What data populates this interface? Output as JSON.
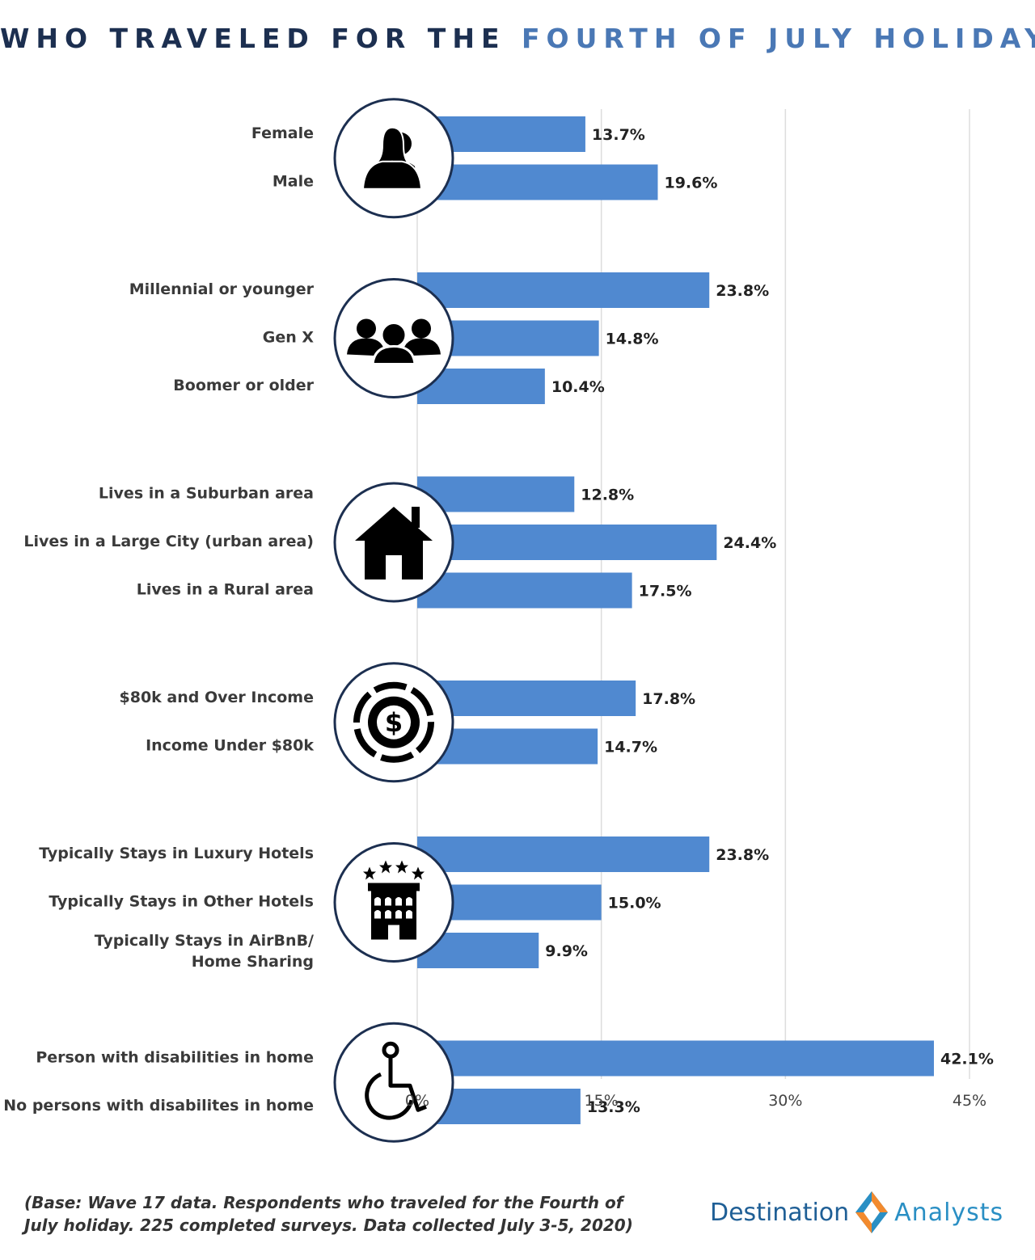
{
  "title": {
    "part1": "WHO TRAVELED FOR THE",
    "part2": "FOURTH OF JULY HOLIDAY"
  },
  "colors": {
    "bar": "#5089d0",
    "title_dark": "#1c2f50",
    "title_accent": "#4a78b5",
    "circle_border": "#1c2f50",
    "grid": "#dddddd"
  },
  "chart_data": {
    "type": "bar",
    "orientation": "horizontal",
    "title": "WHO TRAVELED FOR THE FOURTH OF JULY HOLIDAY",
    "xlim": [
      0,
      45
    ],
    "ticks": [
      "0%",
      "15%",
      "30%",
      "45%"
    ],
    "tick_values": [
      0,
      15,
      30,
      45
    ],
    "groups": [
      {
        "icon": "people-male-female-icon",
        "rows": [
          {
            "label": [
              "Female"
            ],
            "value": 13.7,
            "display": "13.7%"
          },
          {
            "label": [
              "Male"
            ],
            "value": 19.6,
            "display": "19.6%"
          }
        ]
      },
      {
        "icon": "group-three-people-icon",
        "rows": [
          {
            "label": [
              "Millennial or younger"
            ],
            "value": 23.8,
            "display": "23.8%"
          },
          {
            "label": [
              "Gen X"
            ],
            "value": 14.8,
            "display": "14.8%"
          },
          {
            "label": [
              "Boomer or older"
            ],
            "value": 10.4,
            "display": "10.4%"
          }
        ]
      },
      {
        "icon": "house-icon",
        "rows": [
          {
            "label": [
              "Lives in a Suburban area"
            ],
            "value": 12.8,
            "display": "12.8%"
          },
          {
            "label": [
              "Lives in a Large City (urban area)"
            ],
            "value": 24.4,
            "display": "24.4%"
          },
          {
            "label": [
              "Lives in a Rural area"
            ],
            "value": 17.5,
            "display": "17.5%"
          }
        ]
      },
      {
        "icon": "dollar-coin-icon",
        "rows": [
          {
            "label": [
              "$80k and Over Income"
            ],
            "value": 17.8,
            "display": "17.8%"
          },
          {
            "label": [
              "Income Under $80k"
            ],
            "value": 14.7,
            "display": "14.7%"
          }
        ]
      },
      {
        "icon": "hotel-icon",
        "rows": [
          {
            "label": [
              "Typically Stays in Luxury Hotels"
            ],
            "value": 23.8,
            "display": "23.8%"
          },
          {
            "label": [
              "Typically Stays in Other Hotels"
            ],
            "value": 15.0,
            "display": "15.0%"
          },
          {
            "label": [
              "Typically Stays in AirBnB/",
              "Home Sharing"
            ],
            "value": 9.9,
            "display": "9.9%"
          }
        ]
      },
      {
        "icon": "wheelchair-icon",
        "rows": [
          {
            "label": [
              "Person with disabilities in home"
            ],
            "value": 42.1,
            "display": "42.1%"
          },
          {
            "label": [
              "No persons with disabilites in home"
            ],
            "value": 13.3,
            "display": "13.3%"
          }
        ]
      }
    ]
  },
  "footnote": {
    "line1": "(Base: Wave 17 data. Respondents who traveled for the Fourth of",
    "line2": "July holiday. 225 completed surveys. Data collected July 3-5, 2020)"
  },
  "logo": {
    "word1": "Destination",
    "word2": "Analysts"
  }
}
